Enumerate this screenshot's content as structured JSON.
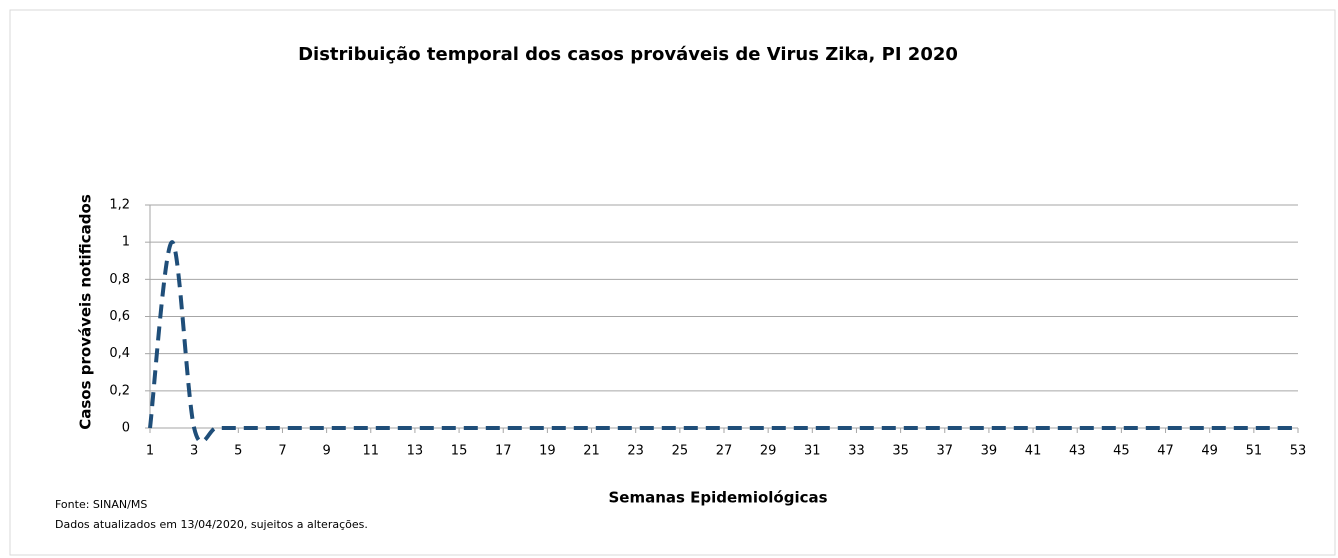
{
  "chart_data": {
    "type": "line",
    "title": "Distribuição temporal dos casos prováveis de Virus Zika, PI 2020",
    "x_label": "Semanas Epidemiológicas",
    "y_label": "Casos prováveis notificados",
    "notes": [
      "Fonte: SINAN/MS",
      "Dados atualizados em 13/04/2020, sujeitos a alterações."
    ],
    "x": [
      1,
      2,
      3,
      4,
      5,
      6,
      7,
      8,
      9,
      10,
      11,
      12,
      13,
      14,
      15,
      16,
      17,
      18,
      19,
      20,
      21,
      22,
      23,
      24,
      25,
      26,
      27,
      28,
      29,
      30,
      31,
      32,
      33,
      34,
      35,
      36,
      37,
      38,
      39,
      40,
      41,
      42,
      43,
      44,
      45,
      46,
      47,
      48,
      49,
      50,
      51,
      52,
      53
    ],
    "series": [
      {
        "color": "#1f4e79",
        "values": [
          0,
          1,
          0,
          0,
          0,
          0,
          0,
          0,
          0,
          0,
          0,
          0,
          0,
          0,
          0,
          0,
          0,
          0,
          0,
          0,
          0,
          0,
          0,
          0,
          0,
          0,
          0,
          0,
          0,
          0,
          0,
          0,
          0,
          0,
          0,
          0,
          0,
          0,
          0,
          0,
          0,
          0,
          0,
          0,
          0,
          0,
          0,
          0,
          0,
          0,
          0,
          0,
          0
        ]
      }
    ],
    "xlim": [
      1,
      53
    ],
    "xticks": [
      1,
      3,
      5,
      7,
      9,
      11,
      13,
      15,
      17,
      19,
      21,
      23,
      25,
      27,
      29,
      31,
      33,
      35,
      37,
      39,
      41,
      43,
      45,
      47,
      49,
      51,
      53
    ],
    "ylim": [
      0,
      1.2
    ],
    "yticks": [
      0,
      {
        "value": 0.2,
        "label": "0,2"
      },
      {
        "value": 0.4,
        "label": "0,4"
      },
      {
        "value": 0.6,
        "label": "0,6"
      },
      {
        "value": 0.8,
        "label": "0,8"
      },
      1,
      {
        "value": 1.2,
        "label": "1,2"
      }
    ],
    "grid": true
  }
}
